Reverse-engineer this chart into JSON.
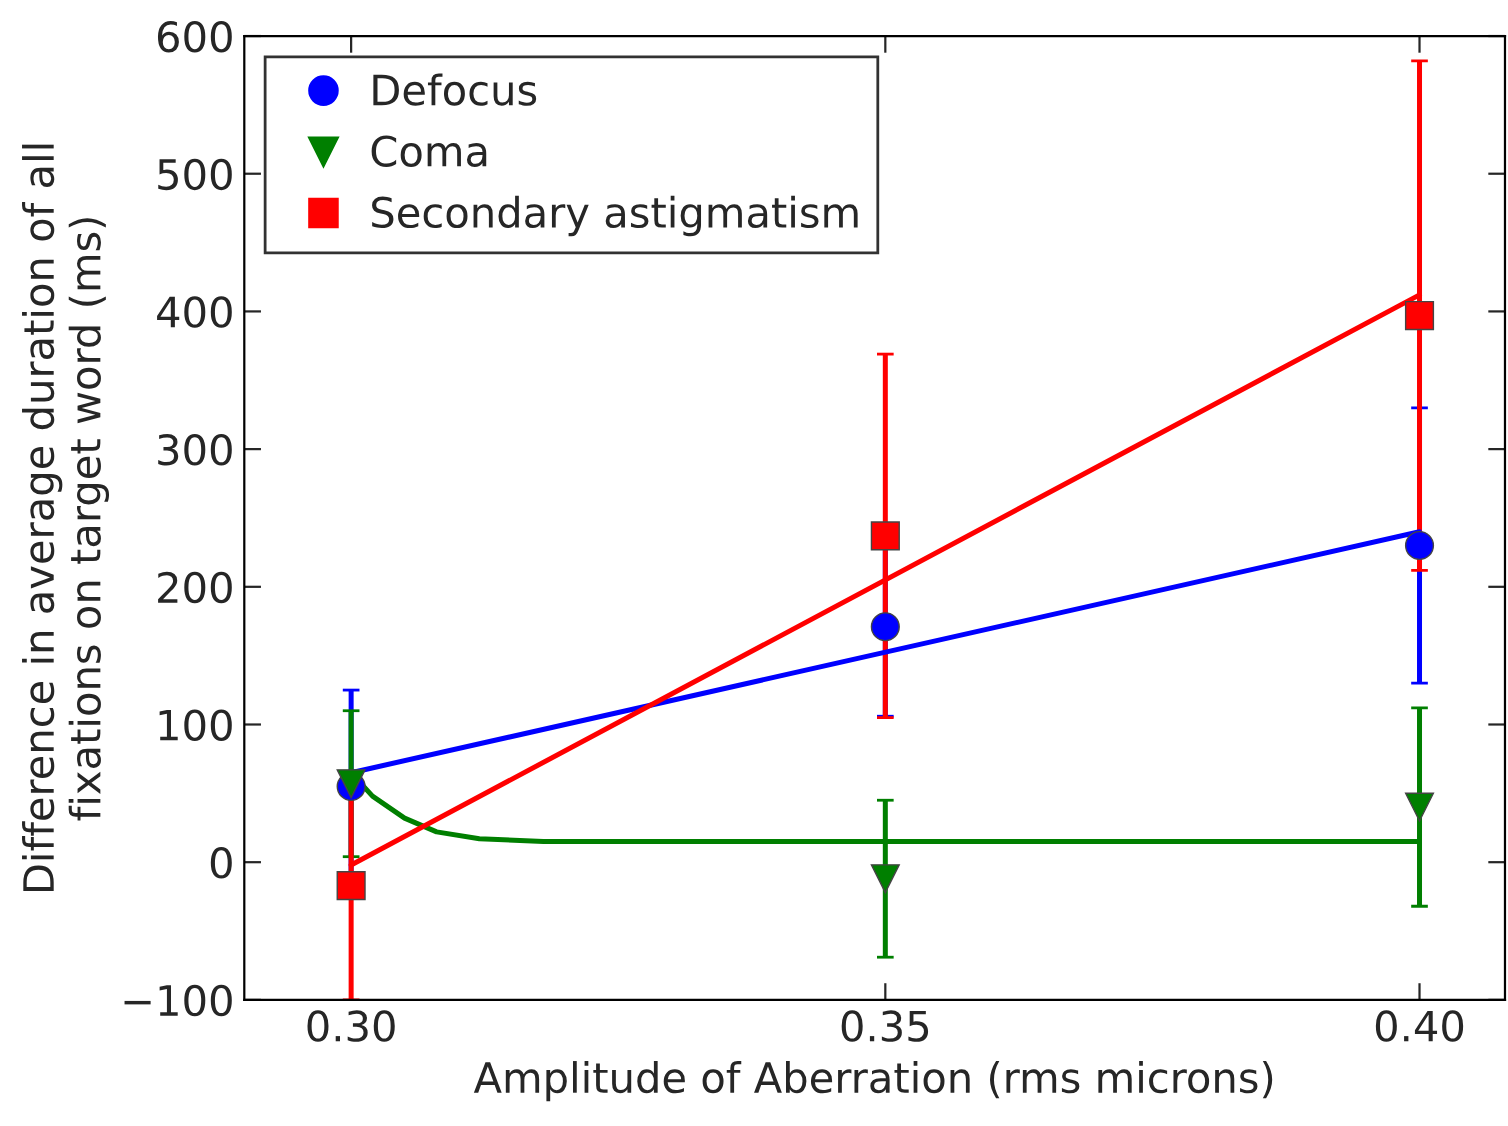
{
  "chart_data": {
    "type": "scatter",
    "xlabel": "Amplitude of Aberration (rms microns)",
    "ylabel": "Difference in average duration of all\nfixations on target word (ms)",
    "xlim": [
      0.29,
      0.408
    ],
    "xticks": [
      {
        "value": 0.3,
        "label": "0.30"
      },
      {
        "value": 0.35,
        "label": "0.35"
      },
      {
        "value": 0.4,
        "label": "0.40"
      }
    ],
    "ylim": [
      -100,
      600
    ],
    "yticks": [
      {
        "value": -100,
        "label": "−100"
      },
      0,
      100,
      200,
      300,
      400,
      500,
      600
    ],
    "legend": "top left",
    "grid": false,
    "series": [
      {
        "name": "Defocus",
        "marker": "circle",
        "color": "#0000ff",
        "x": [
          0.3,
          0.35,
          0.4
        ],
        "values": [
          55,
          171,
          230
        ],
        "errors": [
          70,
          65,
          100
        ]
      },
      {
        "name": "Coma",
        "marker": "triangle",
        "color": "#007f00",
        "x": [
          0.3,
          0.35,
          0.4
        ],
        "values": [
          57,
          -12,
          40
        ],
        "errors": [
          53,
          57,
          72
        ]
      },
      {
        "name": "Secondary astigmatism",
        "marker": "square",
        "color": "#ff0000",
        "x": [
          0.3,
          0.35,
          0.4
        ],
        "values": [
          -17,
          237,
          397
        ],
        "errors": [
          83,
          132,
          185
        ]
      },
      {
        "type": "line",
        "color": "#0000ff",
        "x": [
          0.3,
          0.4
        ],
        "values": [
          65,
          240
        ]
      },
      {
        "type": "line",
        "color": "#007f00",
        "x": [
          0.3,
          0.302,
          0.305,
          0.308,
          0.312,
          0.318,
          0.4
        ],
        "values": [
          65,
          48,
          32,
          22,
          17,
          15,
          15
        ]
      },
      {
        "type": "line",
        "color": "#ff0000",
        "x": [
          0.3,
          0.4
        ],
        "values": [
          -2,
          412
        ]
      }
    ]
  }
}
